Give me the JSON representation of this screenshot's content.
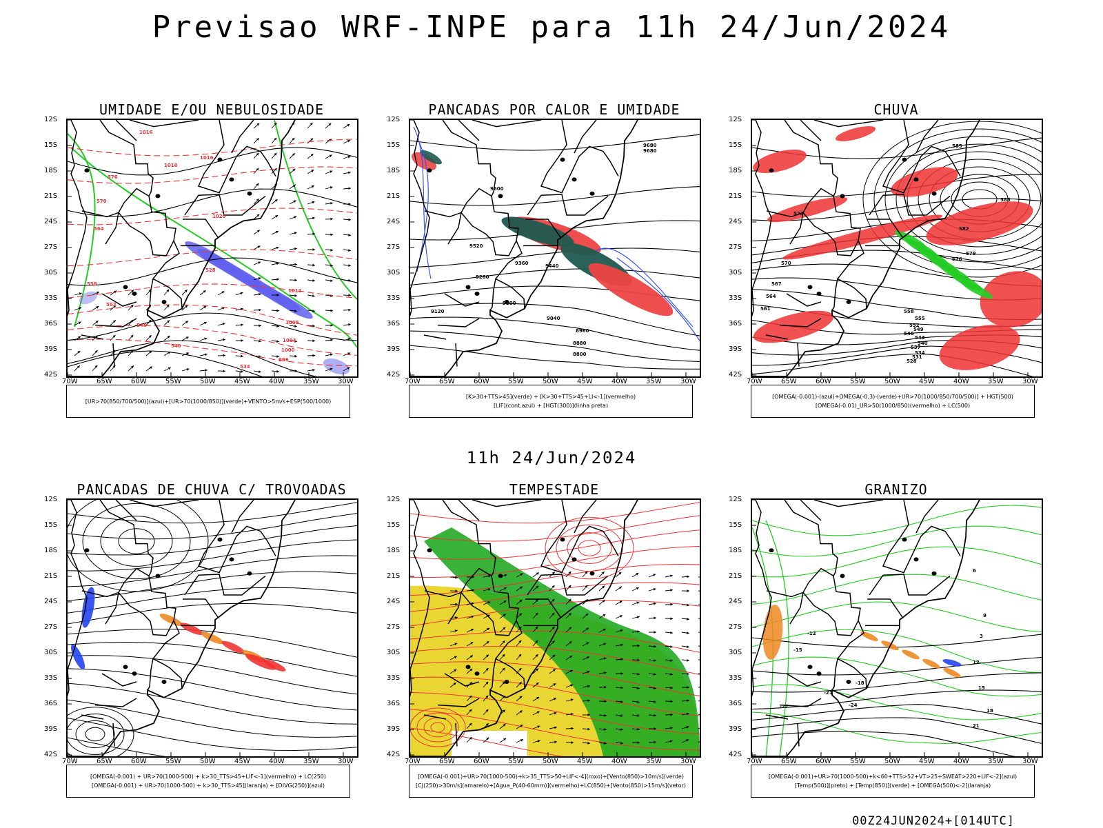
{
  "main_title": "Previsao WRF-INPE  para 11h 24/Jun/2024",
  "mid_title": "11h 24/Jun/2024",
  "footer": "00Z24JUN2024+[014UTC]",
  "lat_labels": [
    "12S",
    "15S",
    "18S",
    "21S",
    "24S",
    "27S",
    "30S",
    "33S",
    "36S",
    "39S",
    "42S"
  ],
  "lon_labels": [
    "70W",
    "65W",
    "60W",
    "55W",
    "50W",
    "45W",
    "40W",
    "35W",
    "30W"
  ],
  "panels": [
    {
      "title": "UMIDADE E/OU NEBULOSIDADE",
      "legend": [
        "[UR>70(850/700/500)](azul)+[UR>70(1000/850)](verde)+VENTO>5m/s+ESP(500/1000)"
      ],
      "contour_labels": [
        "1016",
        "1016",
        "1016",
        "1020",
        "1012",
        "1008",
        "1004",
        "1000",
        "996",
        "576",
        "570",
        "564",
        "558",
        "552",
        "546",
        "540",
        "534",
        "528"
      ],
      "colors": {
        "blue_rh": "#6060ee",
        "green_rh": "#22cc22",
        "thickness": "#ee3333",
        "pressure": "#000000"
      }
    },
    {
      "title": "PANCADAS POR CALOR E UMIDADE",
      "legend": [
        "[K>30+TTS>45](verde) + [K>30+TTS>45+LI<-1](vermelho)",
        "[LIF](cont.azul) + [HGT(300)](linha preta)"
      ],
      "contour_labels": [
        "9680",
        "9680",
        "9600",
        "9520",
        "9440",
        "9360",
        "9280",
        "9200",
        "9120",
        "9040",
        "8960",
        "8880",
        "8800"
      ],
      "colors": {
        "green": "#1f5a50",
        "red": "#ee4444",
        "lif": "#3355ee"
      }
    },
    {
      "title": "CHUVA",
      "legend": [
        "[OMEGA(-0.001)-(azul)+OMEGA(-0.3)-(verde)+UR>70(1000/850/700/500)] + HGT(500)",
        "[OMEGA(-0.01)_UR>50(1000/850)(vermelho) + LC(500)"
      ],
      "contour_labels": [
        "585",
        "585",
        "582",
        "579",
        "576",
        "573",
        "570",
        "567",
        "564",
        "561",
        "558",
        "555",
        "552",
        "549",
        "546",
        "543",
        "540",
        "537",
        "534",
        "531",
        "528"
      ],
      "colors": {
        "red": "#ee3333",
        "green": "#22cc22",
        "blue": "#3355ee"
      }
    },
    {
      "title": "PANCADAS DE CHUVA C/ TROVOADAS",
      "legend": [
        "[OMEGA(-0.001) + UR>70(1000-500) + k>30_TTS>45+LIF<-1](vermelho) + LC(250)",
        "[OMEGA(-0.001) + UR>70(1000-500) + k>30_TTS>45](laranja) + [DIVG(250)](azul)"
      ],
      "contour_labels": [],
      "colors": {
        "red": "#ee3333",
        "orange": "#ee8822",
        "blue": "#2244ee"
      }
    },
    {
      "title": "TEMPESTADE",
      "legend": [
        "[OMEGA(-0.001)+UR>70(1000-500)+k>35_TTS>50+LIF<-4](roxo)+[Vento(850)>10m/s](verde)",
        "[CJ(250)>30m/s](amarelo)+[Agua_P(40-60mm)](vermelho)+LC(850)+[Vento(850)>15m/s](vetor)"
      ],
      "contour_labels": [],
      "colors": {
        "yellow": "#e8d428",
        "green": "#22aa22",
        "red": "#ee3333"
      }
    },
    {
      "title": "GRANIZO",
      "legend": [
        "[OMEGA(-0.001)+UR>70(1000-500)+k<60+TTS>52+VT>25+SWEAT>220+LIF<-2](azul)",
        "[Temp(500)](preto) + [Temp(850)](verde) + [OMEGA(500)<-2](laranja)"
      ],
      "contour_labels": [
        "-12",
        "-15",
        "-18",
        "-21",
        "-24",
        "-27",
        "3",
        "6",
        "9",
        "12",
        "15",
        "18",
        "21"
      ],
      "colors": {
        "green": "#22cc22",
        "orange": "#ee8822",
        "blue": "#2244ee"
      }
    }
  ]
}
